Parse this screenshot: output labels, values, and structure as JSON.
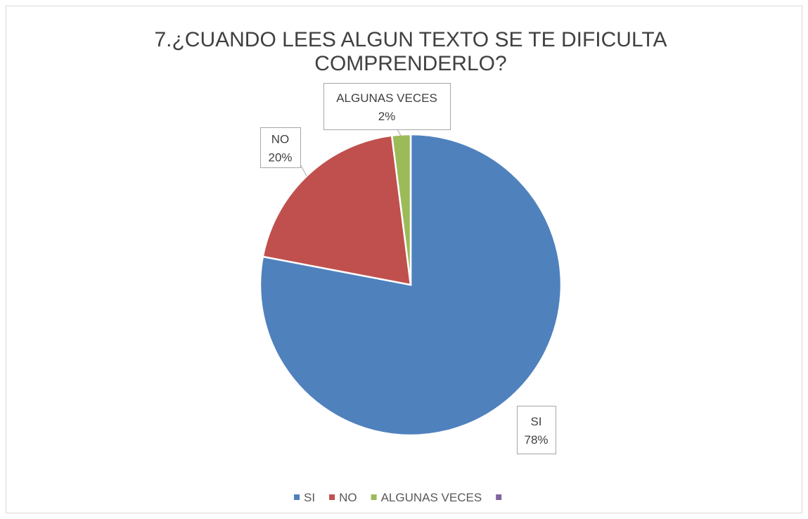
{
  "chart_data": {
    "type": "pie",
    "title": "7.¿CUANDO LEES ALGUN TEXTO SE TE DIFICULTA COMPRENDERLO?",
    "categories": [
      "SI",
      "NO",
      "ALGUNAS VECES",
      null
    ],
    "values": [
      78,
      20,
      2,
      null
    ],
    "value_labels": [
      "78%",
      "20%",
      "2%",
      null
    ],
    "colors": [
      "#4f81bd",
      "#c0504d",
      "#9bbb59",
      "#8064a2"
    ],
    "legend": "bottom"
  }
}
